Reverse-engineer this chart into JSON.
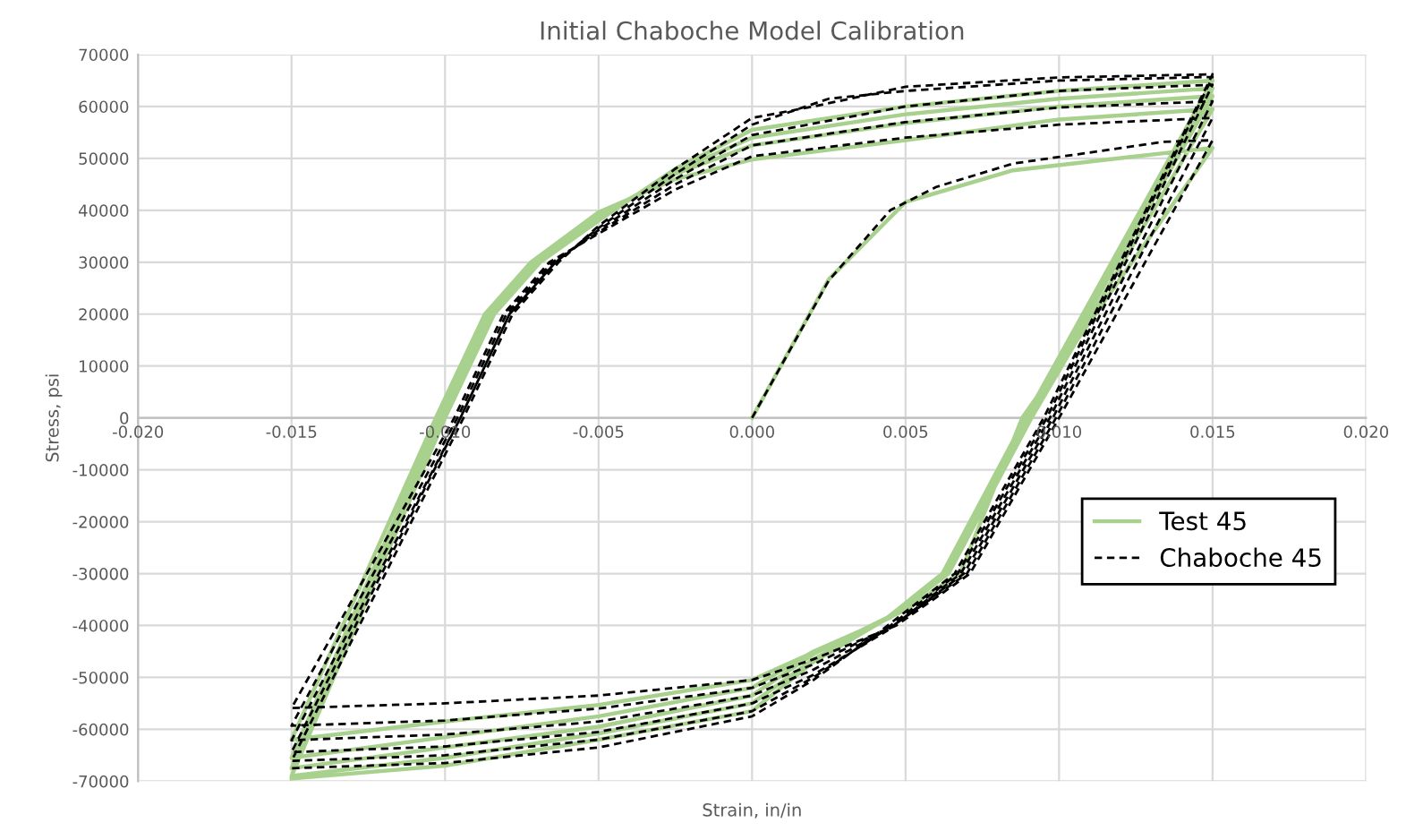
{
  "chart_data": {
    "type": "line",
    "title": "Initial Chaboche Model Calibration",
    "xlabel": "Strain, in/in",
    "ylabel": "Stress, psi",
    "xlim": [
      -0.02,
      0.02
    ],
    "xticks": [
      {
        "value": -0.02,
        "label": "-0.020"
      },
      {
        "value": -0.015,
        "label": "-0.015"
      },
      {
        "value": -0.01,
        "label": "-0.010"
      },
      {
        "value": -0.005,
        "label": "-0.005"
      },
      {
        "value": 0,
        "label": "0.000"
      },
      {
        "value": 0.005,
        "label": "0.005"
      },
      {
        "value": 0.01,
        "label": "0.010"
      },
      {
        "value": 0.015,
        "label": "0.015"
      },
      {
        "value": 0.02,
        "label": "0.020"
      }
    ],
    "ylim": [
      -70000,
      70000
    ],
    "yticks": [
      -70000,
      -60000,
      -50000,
      -40000,
      -30000,
      -20000,
      -10000,
      0,
      10000,
      20000,
      30000,
      40000,
      50000,
      60000,
      70000
    ],
    "grid": true,
    "legend": "right",
    "marker": "none",
    "series": [
      {
        "name": "Test 45",
        "color": "#a9d18e",
        "line_style": "solid",
        "x": [
          0,
          0.0025,
          0.005,
          0.0085,
          0.0134,
          0.015,
          0.0088,
          0.0068,
          0.005,
          0.003,
          0.0,
          -0.005,
          -0.01,
          -0.015,
          -0.0103,
          -0.0087,
          -0.0072,
          -0.005,
          -0.0025,
          0,
          0.005,
          0.01,
          0.015,
          0.0091,
          0.0064,
          0.0045,
          0.002,
          0.0,
          -0.005,
          -0.01,
          -0.015,
          -0.0102,
          -0.0086,
          -0.0071,
          -0.005,
          -0.0025,
          0,
          0.005,
          0.01,
          0.015,
          0.009,
          0.0063,
          0.0044,
          0.002,
          0.0,
          -0.005,
          -0.01,
          -0.015,
          -0.0101,
          -0.0085,
          -0.007,
          -0.005,
          -0.0025,
          0,
          0.005,
          0.01,
          0.015,
          0.0089,
          0.0062,
          0.0043,
          0.002,
          0.0,
          -0.005,
          -0.01,
          -0.015,
          -0.01,
          -0.0084,
          -0.0069,
          -0.005,
          -0.0025,
          0,
          0.005,
          0.01,
          0.015,
          0.0089,
          0.0062,
          0.0043,
          0.002,
          0.0,
          -0.005,
          -0.01,
          -0.015
        ],
        "values": [
          0,
          26700,
          41600,
          47700,
          51000,
          52000,
          0,
          -29700,
          -37000,
          -42500,
          -50500,
          -55300,
          -58500,
          -62000,
          0,
          20000,
          30000,
          39600,
          46000,
          49800,
          53500,
          57500,
          59500,
          0,
          -30000,
          -38500,
          -45000,
          -52000,
          -57500,
          -61500,
          -65500,
          0,
          20000,
          30000,
          39000,
          47000,
          52500,
          56800,
          60000,
          62000,
          0,
          -30000,
          -38500,
          -45500,
          -53500,
          -59500,
          -63500,
          -67500,
          0,
          20000,
          30000,
          38500,
          47500,
          54000,
          58500,
          61500,
          63500,
          0,
          -30000,
          -39000,
          -46500,
          -55000,
          -60800,
          -65500,
          -69000,
          0,
          20000,
          30000,
          38000,
          48000,
          55500,
          60000,
          63000,
          65000,
          0,
          -30000,
          -39000,
          -47000,
          -56500,
          -62000,
          -67000,
          -69500
        ]
      },
      {
        "name": "Chaboche 45",
        "color": "#000000",
        "line_style": "dashed",
        "x": [
          0,
          0.0025,
          0.0045,
          0.006,
          0.0085,
          0.0134,
          0.015,
          0.01,
          0.0071,
          0.0047,
          0.002,
          0,
          -0.005,
          -0.01,
          -0.015,
          -0.0097,
          -0.0081,
          -0.0066,
          -0.005,
          -0.0025,
          0,
          0.005,
          0.01,
          0.015,
          0.0099,
          0.007,
          0.0046,
          0.002,
          0,
          -0.005,
          -0.01,
          -0.015,
          -0.0096,
          -0.008,
          -0.0065,
          -0.005,
          -0.0025,
          0,
          0.005,
          0.01,
          0.015,
          0.0098,
          0.0069,
          0.0045,
          0.002,
          0,
          -0.005,
          -0.01,
          -0.015,
          -0.0095,
          -0.0079,
          -0.0064,
          -0.005,
          -0.0025,
          0,
          0.005,
          0.01,
          0.015,
          0.0097,
          0.0068,
          0.0044,
          0.002,
          0,
          -0.005,
          -0.01,
          -0.015,
          -0.0095,
          -0.0079,
          -0.0064,
          -0.005,
          -0.0025,
          0,
          0.0025,
          0.005,
          0.01,
          0.015,
          0.0096,
          0.0067,
          0.0043,
          0.002,
          0,
          -0.005,
          -0.01,
          -0.015,
          -0.0094,
          -0.0078,
          -0.0063,
          -0.005,
          -0.0025,
          0,
          0.002,
          0.005,
          0.01,
          0.015,
          0.0095,
          0.0066,
          0.0042,
          0.002,
          0,
          -0.005,
          -0.01,
          -0.015
        ],
        "values": [
          0,
          26500,
          40000,
          44500,
          49000,
          53200,
          53500,
          0,
          -30000,
          -40000,
          -46500,
          -50500,
          -53500,
          -55000,
          -55900,
          0,
          20000,
          30000,
          35500,
          44000,
          50400,
          54000,
          56500,
          57800,
          0,
          -30000,
          -40000,
          -47500,
          -52000,
          -56000,
          -58300,
          -59300,
          0,
          20000,
          30000,
          35800,
          45000,
          52500,
          57000,
          59800,
          61000,
          0,
          -30000,
          -40500,
          -48500,
          -53500,
          -58500,
          -61000,
          -62100,
          0,
          20000,
          30000,
          36200,
          46000,
          54500,
          60000,
          63000,
          64200,
          0,
          -30000,
          -41000,
          -49500,
          -55000,
          -60500,
          -63300,
          -64400,
          0,
          20000,
          30000,
          36600,
          47000,
          56500,
          61500,
          63000,
          65000,
          65700,
          0,
          -30000,
          -41000,
          -50000,
          -56500,
          -62000,
          -65000,
          -66100,
          0,
          20000,
          30000,
          37000,
          48000,
          57800,
          60000,
          63800,
          65600,
          66200,
          0,
          -30000,
          -41000,
          -50500,
          -57500,
          -63500,
          -66500,
          -67500
        ]
      }
    ]
  }
}
